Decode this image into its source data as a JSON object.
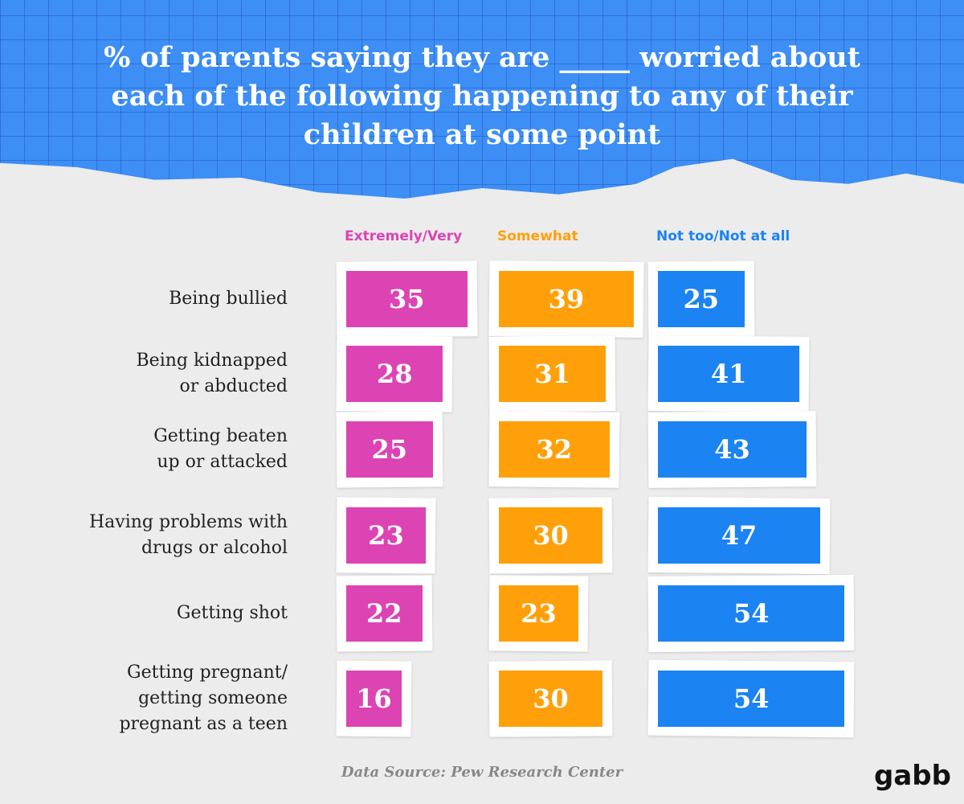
{
  "chart_data": {
    "type": "bar",
    "title": "% of parents saying they are _____ worried about\neach of the following happening to any of their\nchildren at some point",
    "categories": [
      "Being bullied",
      "Being kidnapped\nor abducted",
      "Getting beaten\nup or attacked",
      "Having problems with\ndrugs or alcohol",
      "Getting shot",
      "Getting pregnant/\ngetting someone\npregnant as a teen"
    ],
    "series": [
      {
        "name": "Extremely/Very",
        "color": "#dc44b4",
        "values": [
          35,
          28,
          25,
          23,
          22,
          16
        ]
      },
      {
        "name": "Somewhat",
        "color": "#ffa00a",
        "values": [
          39,
          31,
          32,
          30,
          23,
          30
        ]
      },
      {
        "name": "Not too/Not at all",
        "color": "#1b83f2",
        "values": [
          25,
          41,
          43,
          47,
          54,
          54
        ]
      }
    ],
    "source": "Data Source: Pew Research Center",
    "logo": "gabb"
  }
}
